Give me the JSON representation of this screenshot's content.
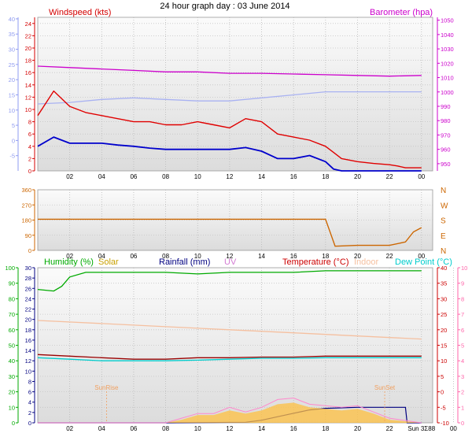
{
  "page": {
    "title": "24 hour graph day : 03 June 2014"
  },
  "chart_data": [
    {
      "type": "line",
      "panel": "wind-barometer",
      "time_ticks": [
        "02",
        "04",
        "06",
        "08",
        "10",
        "12",
        "14",
        "16",
        "18",
        "20",
        "22",
        "00"
      ],
      "axes": {
        "outer_left": {
          "ticks": [
            -5,
            0,
            5,
            10,
            15,
            20,
            25,
            30,
            35,
            40
          ],
          "color": "#8f9bf0"
        },
        "left": {
          "label": "Windspeed (kts)",
          "ticks": [
            0,
            2,
            4,
            6,
            8,
            10,
            12,
            14,
            16,
            18,
            20,
            22,
            24
          ],
          "range": [
            0,
            25
          ],
          "color": "#d40000"
        },
        "right": {
          "label": "Barometer (hpa)",
          "ticks": [
            950,
            960,
            970,
            980,
            990,
            1000,
            1010,
            1020,
            1030,
            1040,
            1050
          ],
          "range": [
            945,
            1052
          ],
          "color": "#cc00cc"
        }
      },
      "series": [
        {
          "role": "barometer",
          "axis": "right",
          "color": "#cc00cc",
          "x": [
            0,
            2,
            4,
            6,
            8,
            10,
            12,
            14,
            16,
            18,
            20,
            22,
            24
          ],
          "y": [
            1018,
            1017,
            1016,
            1015,
            1014,
            1014,
            1013,
            1013,
            1012.5,
            1012,
            1011.5,
            1011,
            1011.5
          ]
        },
        {
          "role": "light-blue-line",
          "axis": "outer_left",
          "color": "#a9b2f2",
          "x": [
            0,
            2,
            4,
            6,
            8,
            10,
            12,
            14,
            16,
            18,
            20,
            22,
            24
          ],
          "y": [
            12,
            12.5,
            13.5,
            14,
            13.5,
            13,
            13,
            14,
            15,
            16,
            16,
            16,
            16
          ]
        },
        {
          "role": "gust",
          "axis": "left",
          "color": "#e00000",
          "x": [
            0,
            1,
            2,
            3,
            4,
            5,
            6,
            7,
            8,
            9,
            10,
            11,
            12,
            13,
            14,
            15,
            16,
            17,
            18,
            18.5,
            19,
            20,
            21,
            22,
            22.5,
            23,
            24
          ],
          "y": [
            9,
            13,
            10.5,
            9.5,
            9,
            8.5,
            8,
            8,
            7.5,
            7.5,
            8,
            7.5,
            7,
            8.5,
            8,
            6,
            5.5,
            5,
            4,
            3,
            2,
            1.5,
            1.2,
            1,
            0.8,
            0.5,
            0.5
          ]
        },
        {
          "role": "windspeed",
          "axis": "left",
          "color": "#0000cc",
          "x": [
            0,
            1,
            2,
            3,
            4,
            5,
            6,
            7,
            8,
            9,
            10,
            11,
            12,
            13,
            14,
            15,
            16,
            17,
            18,
            18.5,
            19,
            20,
            21,
            22,
            23,
            24
          ],
          "y": [
            4,
            5.5,
            4.5,
            4.5,
            4.5,
            4.2,
            4,
            3.7,
            3.5,
            3.5,
            3.5,
            3.5,
            3.5,
            3.8,
            3.2,
            2,
            2,
            2.5,
            1.5,
            0.3,
            0,
            0,
            0,
            0,
            0,
            0
          ]
        }
      ]
    },
    {
      "type": "line",
      "panel": "wind-direction",
      "time_ticks": [
        "02",
        "04",
        "06",
        "08",
        "10",
        "12",
        "14",
        "16",
        "18",
        "20",
        "22",
        "00"
      ],
      "axes": {
        "left": {
          "ticks": [
            0,
            90,
            180,
            270,
            360
          ],
          "range": [
            0,
            360
          ]
        },
        "right": {
          "ticks": [
            "N",
            "W",
            "S",
            "E",
            "N"
          ]
        }
      },
      "series": [
        {
          "role": "direction",
          "color": "#cc6600",
          "x": [
            0,
            18,
            18.6,
            20,
            22,
            23,
            23.5,
            24
          ],
          "y": [
            185,
            185,
            25,
            30,
            30,
            50,
            110,
            135
          ]
        }
      ]
    },
    {
      "type": "line",
      "panel": "temperature-humidity",
      "time_ticks": [
        "02",
        "04",
        "06",
        "08",
        "10",
        "12",
        "14",
        "16",
        "18",
        "20",
        "22",
        "Sun 3Σ88",
        "00"
      ],
      "legend": [
        {
          "label": "Humidity (%)",
          "color": "#00aa00"
        },
        {
          "label": "Solar",
          "color": "#c8a000"
        },
        {
          "label": "Rainfall (mm)",
          "color": "#000080"
        },
        {
          "label": "UV",
          "color": "#d37bd3"
        },
        {
          "label": "Temperature (°C)",
          "color": "#cc0000"
        },
        {
          "label": "Indoor",
          "color": "#f5c0a0"
        },
        {
          "label": "Dew Point (°C)",
          "color": "#00cccc"
        }
      ],
      "axes": {
        "outer_left": {
          "ticks": [
            0,
            10,
            20,
            30,
            40,
            50,
            60,
            70,
            80,
            90,
            100
          ],
          "color": "#00aa00"
        },
        "left": {
          "ticks": [
            0,
            2,
            4,
            6,
            8,
            10,
            12,
            14,
            16,
            18,
            20,
            22,
            24,
            26,
            28,
            30
          ],
          "color": "#000080"
        },
        "right": {
          "ticks": [
            -10,
            -5,
            0,
            5,
            10,
            15,
            20,
            25,
            30,
            35,
            40
          ],
          "color": "#cc0000"
        },
        "outer_right": {
          "ticks": [
            0,
            1,
            2,
            3,
            4,
            5,
            6,
            7,
            8,
            9,
            10
          ],
          "color": "#ff66aa"
        }
      },
      "annotations": [
        {
          "text": "SunRise",
          "x": 4.3
        },
        {
          "text": "SunSet",
          "x": 21.7
        }
      ],
      "series": [
        {
          "role": "humidity",
          "axis": "outer_left",
          "color": "#00aa00",
          "x": [
            0,
            1,
            1.5,
            2,
            3,
            4,
            6,
            8,
            10,
            12,
            14,
            16,
            18,
            20,
            22,
            24
          ],
          "y": [
            86,
            85,
            88,
            94,
            97,
            97,
            97,
            97,
            96,
            97,
            97,
            97,
            98,
            98,
            98,
            98
          ]
        },
        {
          "role": "indoor",
          "axis": "right",
          "color": "#f5c0a0",
          "x": [
            0,
            4,
            8,
            12,
            16,
            20,
            24
          ],
          "y": [
            23,
            22,
            21,
            20,
            19,
            18,
            17
          ]
        },
        {
          "role": "temperature",
          "axis": "right",
          "color": "#990000",
          "x": [
            0,
            2,
            4,
            6,
            8,
            10,
            12,
            14,
            16,
            18,
            20,
            22,
            24
          ],
          "y": [
            12,
            11.5,
            11,
            10.5,
            10.5,
            11,
            11,
            11.2,
            11.2,
            11.5,
            11.5,
            11.5,
            11.5
          ]
        },
        {
          "role": "dew-point",
          "axis": "right",
          "color": "#00cccc",
          "x": [
            0,
            2,
            4,
            6,
            8,
            10,
            12,
            14,
            16,
            18,
            20,
            22,
            24
          ],
          "y": [
            11,
            10.5,
            10,
            10,
            10,
            10.2,
            10.5,
            10.8,
            10.8,
            11,
            11,
            11,
            11
          ]
        },
        {
          "role": "rainfall",
          "axis": "left",
          "color": "#000080",
          "x": [
            0,
            4,
            8,
            13,
            14,
            15.5,
            17,
            18,
            20,
            22,
            23,
            23.1,
            24
          ],
          "y": [
            0,
            0,
            0,
            0.1,
            0.5,
            1.5,
            2.5,
            2.8,
            3,
            3,
            3,
            0,
            0
          ]
        },
        {
          "role": "solar",
          "axis": "outer_right",
          "color": "#ffc040",
          "x": [
            0,
            8,
            9,
            10,
            11,
            12,
            13,
            14,
            15,
            16,
            17,
            18,
            19,
            20,
            21,
            22,
            24
          ],
          "y": [
            0,
            0,
            0.2,
            0.5,
            0.5,
            0.8,
            0.6,
            0.8,
            1.2,
            1.3,
            1.0,
            0.9,
            0.8,
            0.9,
            0.6,
            0.2,
            0
          ]
        },
        {
          "role": "uv",
          "axis": "outer_right",
          "color": "#ff88cc",
          "x": [
            0,
            8,
            9,
            10,
            11,
            12,
            13,
            14,
            15,
            16,
            17,
            18,
            19,
            20,
            21,
            22,
            24
          ],
          "y": [
            0,
            0,
            0.3,
            0.6,
            0.6,
            1.0,
            0.7,
            1.0,
            1.5,
            1.6,
            1.2,
            1.1,
            1.0,
            1.1,
            0.7,
            0.3,
            0
          ]
        }
      ]
    }
  ]
}
